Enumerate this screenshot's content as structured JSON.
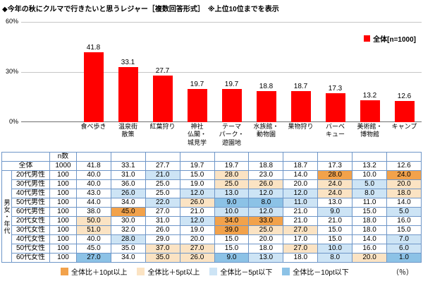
{
  "title": "◆今年の秋にクルマで行きたいと思うレジャー［複数回答形式］　※上位10位までを表示",
  "chart_data": {
    "type": "bar",
    "title": "今年の秋にクルマで行きたいと思うレジャー",
    "legend": "全体[n=1000]",
    "ylim": [
      0,
      60
    ],
    "yticks": [
      "0%",
      "30%",
      "60%"
    ],
    "grid": true,
    "legend_position": "top-right",
    "bar_color": "#ff0000",
    "categories": [
      "食べ歩き",
      "温泉街散策",
      "紅葉狩り",
      "神社仏閣・城見学",
      "テーマパーク・遊園地",
      "水族館・動物園",
      "果物狩り",
      "バーベキュー",
      "美術館・博物館",
      "キャンプ"
    ],
    "category_lines": [
      [
        "食べ歩き"
      ],
      [
        "温泉街",
        "散策"
      ],
      [
        "紅葉狩り"
      ],
      [
        "神社",
        "仏閣・",
        "城見学"
      ],
      [
        "テーマ",
        "パーク・",
        "遊園地"
      ],
      [
        "水族館・",
        "動物園"
      ],
      [
        "果物狩り"
      ],
      [
        "バーベ",
        "キュー"
      ],
      [
        "美術館・",
        "博物館"
      ],
      [
        "キャンプ"
      ]
    ],
    "values": [
      41.8,
      33.1,
      27.7,
      19.7,
      19.7,
      18.8,
      18.7,
      17.3,
      13.2,
      12.6
    ]
  },
  "table": {
    "n_header": "n数",
    "group_label": "男女・年代",
    "overall": {
      "label": "全体",
      "n": "1000",
      "values": [
        41.8,
        33.1,
        27.7,
        19.7,
        19.7,
        18.8,
        18.7,
        17.3,
        13.2,
        12.6
      ]
    },
    "rows": [
      {
        "label": "20代男性",
        "n": "100",
        "values": [
          40.0,
          31.0,
          21.0,
          15.0,
          28.0,
          23.0,
          14.0,
          28.0,
          10.0,
          24.0
        ]
      },
      {
        "label": "30代男性",
        "n": "100",
        "values": [
          40.0,
          36.0,
          25.0,
          19.0,
          25.0,
          26.0,
          20.0,
          24.0,
          5.0,
          20.0
        ]
      },
      {
        "label": "40代男性",
        "n": "100",
        "values": [
          43.0,
          26.0,
          25.0,
          12.0,
          13.0,
          12.0,
          12.0,
          24.0,
          8.0,
          18.0
        ]
      },
      {
        "label": "50代男性",
        "n": "100",
        "values": [
          44.0,
          34.0,
          22.0,
          26.0,
          9.0,
          8.0,
          11.0,
          13.0,
          11.0,
          14.0
        ]
      },
      {
        "label": "60代男性",
        "n": "100",
        "values": [
          38.0,
          45.0,
          27.0,
          21.0,
          10.0,
          12.0,
          21.0,
          9.0,
          15.0,
          5.0
        ]
      },
      {
        "label": "20代女性",
        "n": "100",
        "values": [
          50.0,
          30.0,
          31.0,
          12.0,
          34.0,
          33.0,
          21.0,
          21.0,
          18.0,
          16.0
        ]
      },
      {
        "label": "30代女性",
        "n": "100",
        "values": [
          51.0,
          32.0,
          26.0,
          19.0,
          39.0,
          25.0,
          27.0,
          15.0,
          18.0,
          15.0
        ]
      },
      {
        "label": "40代女性",
        "n": "100",
        "values": [
          40.0,
          28.0,
          29.0,
          20.0,
          15.0,
          20.0,
          17.0,
          15.0,
          14.0,
          7.0
        ]
      },
      {
        "label": "50代女性",
        "n": "100",
        "values": [
          45.0,
          35.0,
          37.0,
          27.0,
          15.0,
          18.0,
          27.0,
          10.0,
          16.0,
          6.0
        ]
      },
      {
        "label": "60代女性",
        "n": "100",
        "values": [
          27.0,
          34.0,
          35.0,
          26.0,
          9.0,
          13.0,
          18.0,
          8.0,
          20.0,
          1.0
        ]
      }
    ]
  },
  "legend_bottom": {
    "items": [
      {
        "label": "全体比＋10pt以上",
        "color": "#f2a24b"
      },
      {
        "label": "全体比＋5pt以上",
        "color": "#fbe3c3"
      },
      {
        "label": "全体比－5pt以下",
        "color": "#cde4f5"
      },
      {
        "label": "全体比－10pt以下",
        "color": "#8cc2e6"
      }
    ],
    "unit": "（％）"
  },
  "colors": {
    "bar": "#ff0000",
    "table_border": "#6e96c8"
  }
}
